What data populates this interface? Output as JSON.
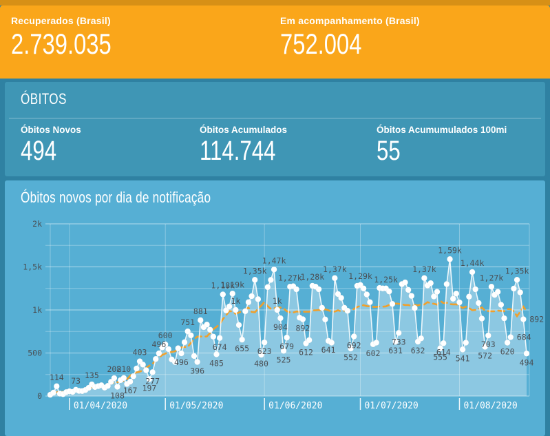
{
  "header": {
    "stats": [
      {
        "label": "Recuperados (Brasil)",
        "value": "2.739.035"
      },
      {
        "label": "Em acompanhamento (Brasil)",
        "value": "752.004"
      }
    ]
  },
  "obitos": {
    "title": "ÓBITOS",
    "stats": [
      {
        "label": "Óbitos Novos",
        "value": "494"
      },
      {
        "label": "Óbitos Acumulados",
        "value": "114.744"
      },
      {
        "label": "Óbitos Acumumulados 100mi",
        "value": "55"
      }
    ]
  },
  "chart_card": {
    "title": "Óbitos novos por dia de notificação"
  },
  "chart_data": {
    "type": "line",
    "title": "Óbitos novos por dia de notificação",
    "start_date": "26/03/2020",
    "end_date": "22/08/2020",
    "interval": "daily",
    "grid": true,
    "legend": "none",
    "ylim": [
      0,
      2000
    ],
    "yticks": [
      {
        "v": 0,
        "t": "0"
      },
      {
        "v": 500,
        "t": "500"
      },
      {
        "v": 1000,
        "t": "1k"
      },
      {
        "v": 1500,
        "t": "1,5k"
      },
      {
        "v": 2000,
        "t": "2k"
      }
    ],
    "xticks": [
      {
        "day_index": 6,
        "t": "01/04/2020"
      },
      {
        "day_index": 36,
        "t": "01/05/2020"
      },
      {
        "day_index": 67,
        "t": "01/06/2020"
      },
      {
        "day_index": 97,
        "t": "01/07/2020"
      },
      {
        "day_index": 128,
        "t": "01/08/2020"
      }
    ],
    "values": [
      15,
      40,
      114,
      28,
      22,
      45,
      55,
      48,
      73,
      60,
      58,
      70,
      95,
      135,
      105,
      115,
      125,
      98,
      118,
      165,
      208,
      108,
      185,
      210,
      140,
      167,
      230,
      320,
      403,
      365,
      300,
      197,
      277,
      430,
      496,
      565,
      600,
      545,
      425,
      395,
      555,
      496,
      625,
      751,
      705,
      465,
      396,
      881,
      800,
      830,
      770,
      690,
      485,
      674,
      1180,
      995,
      1040,
      1190,
      1000,
      825,
      655,
      985,
      1090,
      1160,
      1350,
      1125,
      480,
      623,
      1265,
      1349,
      1470,
      1000,
      904,
      525,
      679,
      1270,
      1275,
      1240,
      910,
      892,
      612,
      650,
      1280,
      1270,
      1240,
      1025,
      890,
      641,
      620,
      1370,
      1185,
      1140,
      1025,
      990,
      552,
      692,
      1280,
      1290,
      1250,
      1180,
      1090,
      602,
      620,
      1255,
      1250,
      1250,
      1215,
      1070,
      631,
      733,
      1300,
      1320,
      1233,
      1163,
      1022,
      632,
      670,
      1370,
      1284,
      1311,
      1156,
      1211,
      555,
      614,
      1300,
      1590,
      1130,
      1190,
      1088,
      541,
      620,
      1154,
      1440,
      1240,
      1080,
      900,
      572,
      703,
      1270,
      1175,
      1210,
      1060,
      903,
      620,
      684,
      1248,
      1350,
      1204,
      892,
      494
    ],
    "point_labels": {
      "2": [
        "114",
        "a"
      ],
      "8": [
        "73",
        "a"
      ],
      "13": [
        "135",
        "a"
      ],
      "20": [
        "208",
        "a"
      ],
      "21": [
        "108",
        "b"
      ],
      "23": [
        "210",
        "a"
      ],
      "25": [
        "167",
        "b"
      ],
      "28": [
        "403",
        "a"
      ],
      "31": [
        "197",
        "b"
      ],
      "32": [
        "277",
        "b"
      ],
      "34": [
        "496",
        "a"
      ],
      "36": [
        "600",
        "a"
      ],
      "41": [
        "496",
        "b"
      ],
      "43": [
        "751",
        "a"
      ],
      "46": [
        "396",
        "b"
      ],
      "47": [
        "881",
        "a"
      ],
      "52": [
        "485",
        "b"
      ],
      "53": [
        "674",
        "b"
      ],
      "54": [
        "1,18k",
        "a"
      ],
      "57": [
        "1,19k",
        "a"
      ],
      "58": [
        "1k",
        "a"
      ],
      "60": [
        "655",
        "b"
      ],
      "64": [
        "1,35k",
        "a"
      ],
      "66": [
        "480",
        "b"
      ],
      "67": [
        "623",
        "b"
      ],
      "70": [
        "1,47k",
        "a"
      ],
      "71": [
        "1k",
        "a"
      ],
      "72": [
        "904",
        "b"
      ],
      "73": [
        "525",
        "b"
      ],
      "74": [
        "679",
        "b"
      ],
      "75": [
        "1,27k",
        "a"
      ],
      "79": [
        "892",
        "b"
      ],
      "80": [
        "612",
        "b"
      ],
      "82": [
        "1,28k",
        "a"
      ],
      "87": [
        "641",
        "b"
      ],
      "89": [
        "1,37k",
        "a"
      ],
      "94": [
        "552",
        "b"
      ],
      "95": [
        "692",
        "b"
      ],
      "97": [
        "1,29k",
        "a"
      ],
      "101": [
        "602",
        "b"
      ],
      "105": [
        "1,25k",
        "a"
      ],
      "108": [
        "631",
        "b"
      ],
      "109": [
        "733",
        "b"
      ],
      "115": [
        "632",
        "b"
      ],
      "117": [
        "1,37k",
        "a"
      ],
      "122": [
        "555",
        "b"
      ],
      "123": [
        "614",
        "b"
      ],
      "125": [
        "1,59k",
        "a"
      ],
      "129": [
        "541",
        "b"
      ],
      "132": [
        "1,44k",
        "a"
      ],
      "136": [
        "572",
        "b"
      ],
      "137": [
        "703",
        "b"
      ],
      "138": [
        "1,27k",
        "a"
      ],
      "143": [
        "620",
        "b"
      ],
      "144": [
        "684",
        "r"
      ],
      "146": [
        "1,35k",
        "a"
      ],
      "148": [
        "892",
        "r"
      ],
      "149": [
        "494",
        "b"
      ]
    },
    "trend": {
      "kind": "moving_average",
      "window": 7,
      "style": "dashed"
    },
    "colors": {
      "line": "rgba(255,255,255,0.88)",
      "area": "rgba(255,255,255,0.32)",
      "marker": "#ffffff",
      "trend": "#F59E22",
      "grid_major": "rgba(255,255,255,0.55)",
      "grid_minor": "rgba(255,255,255,0.30)",
      "label": "#4A4F54",
      "axis_date": "#ffffff"
    }
  },
  "page_colors": {
    "background": "#2F81A2",
    "top_strip": "#D79016",
    "header_bg": "#FAA61A",
    "obitos_bg": "#3F96B5",
    "chart_bg": "#56AFD4"
  }
}
